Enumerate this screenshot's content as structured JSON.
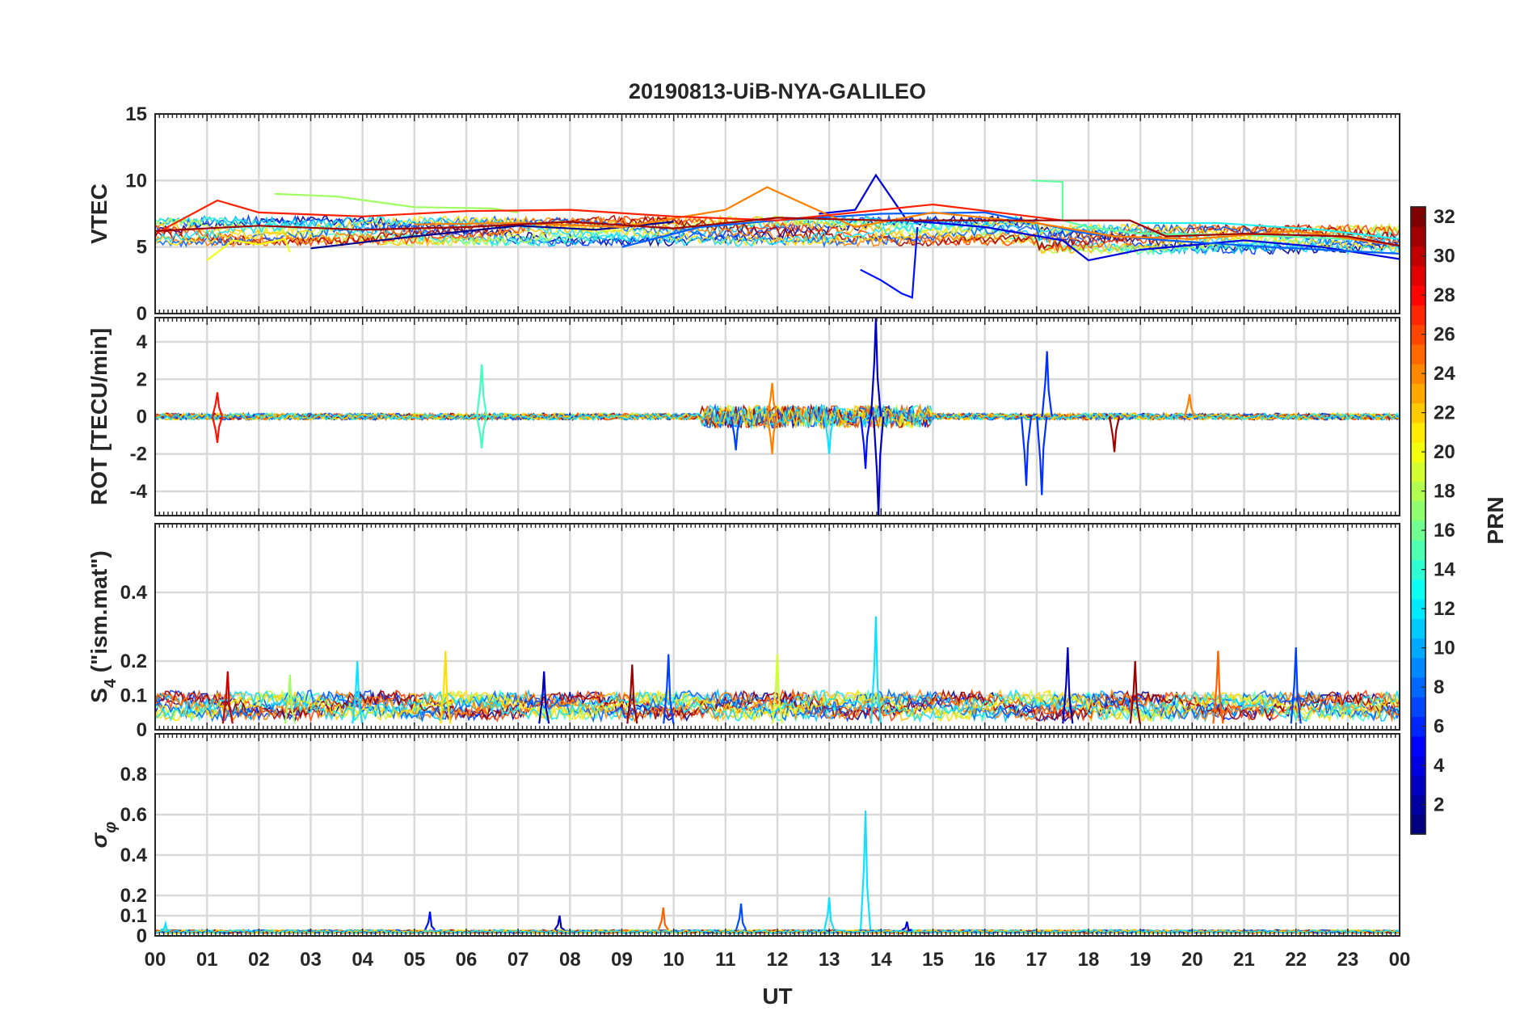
{
  "figure": {
    "title": "20190813-UiB-NYA-GALILEO",
    "xlabel": "UT",
    "x_tick_labels": [
      "00",
      "01",
      "02",
      "03",
      "04",
      "05",
      "06",
      "07",
      "08",
      "09",
      "10",
      "11",
      "12",
      "13",
      "14",
      "15",
      "16",
      "17",
      "18",
      "19",
      "20",
      "21",
      "22",
      "23",
      "00"
    ]
  },
  "colorbar": {
    "label": "PRN",
    "range": [
      1,
      32
    ],
    "tick_labels": [
      "2",
      "4",
      "6",
      "8",
      "10",
      "12",
      "14",
      "16",
      "18",
      "20",
      "22",
      "24",
      "26",
      "28",
      "30",
      "32"
    ],
    "colormap": "jet"
  },
  "chart_data": [
    {
      "type": "line",
      "panel": "vtec",
      "ylabel": "VTEC",
      "xlim": [
        0,
        24
      ],
      "ylim": [
        0,
        15
      ],
      "ytick_labels": [
        "0",
        "5",
        "10",
        "15"
      ],
      "grid": true,
      "series": [
        {
          "prn": 1,
          "color": "#00008f",
          "x": [
            3.0,
            5.0,
            7.0,
            8.5,
            10.0
          ],
          "y": [
            4.9,
            5.8,
            6.6,
            6.3,
            6.9
          ]
        },
        {
          "prn": 3,
          "color": "#0010ff",
          "x": [
            13.6,
            14.0,
            14.4,
            14.6,
            14.7
          ],
          "y": [
            3.3,
            2.5,
            1.5,
            1.2,
            6.5
          ]
        },
        {
          "prn": 4,
          "color": "#0000df",
          "x": [
            12.8,
            13.5,
            13.9,
            14.5,
            16.0,
            17.5,
            18.0,
            19.0,
            21.0,
            22.5,
            24.0
          ],
          "y": [
            7.5,
            7.8,
            10.4,
            7.0,
            6.5,
            5.5,
            4.0,
            4.8,
            5.5,
            5.0,
            4.1
          ]
        },
        {
          "prn": 8,
          "color": "#0060ff",
          "x": [
            9.0,
            10.5,
            12.0,
            14.0,
            16.0,
            18.0,
            19.5,
            21.5,
            24.0
          ],
          "y": [
            5.0,
            6.5,
            7.0,
            7.5,
            7.6,
            6.0,
            5.5,
            5.0,
            4.5
          ]
        },
        {
          "prn": 13,
          "color": "#20f0f0",
          "x": [
            19.0,
            20.5,
            22.5,
            24.0
          ],
          "y": [
            6.8,
            6.8,
            6.3,
            5.6
          ]
        },
        {
          "prn": 16,
          "color": "#60ffa0",
          "x": [
            16.9,
            17.5,
            17.5,
            18.0,
            19.0,
            21.0,
            23.0
          ],
          "y": [
            10.0,
            9.9,
            7.0,
            6.5,
            6.0,
            5.9,
            5.6
          ]
        },
        {
          "prn": 18,
          "color": "#a0ff60",
          "x": [
            2.3,
            3.5,
            5.0,
            6.5,
            7.0
          ],
          "y": [
            9.0,
            8.8,
            8.0,
            7.9,
            7.6
          ]
        },
        {
          "prn": 20,
          "color": "#efff10",
          "x": [
            1.0,
            1.5,
            2.0,
            2.5,
            2.6
          ],
          "y": [
            4.0,
            5.5,
            5.2,
            5.6,
            4.6
          ]
        },
        {
          "prn": 23,
          "color": "#ff8000",
          "x": [
            5.0,
            7.0,
            9.0,
            11.0,
            11.8,
            13.5,
            15.0,
            17.0,
            18.5,
            20.0,
            22.0,
            24.0
          ],
          "y": [
            6.7,
            6.8,
            6.5,
            7.8,
            9.5,
            6.5,
            7.6,
            6.8,
            5.8,
            5.6,
            6.2,
            5.1
          ]
        },
        {
          "prn": 27,
          "color": "#ff2000",
          "x": [
            0.0,
            1.2,
            2.0,
            4.0,
            6.0,
            8.0,
            10.0,
            12.0,
            14.0,
            15.0,
            17.5
          ],
          "y": [
            6.0,
            8.5,
            7.6,
            7.3,
            7.7,
            7.8,
            7.3,
            7.0,
            7.8,
            8.2,
            7.0
          ]
        },
        {
          "prn": 31,
          "color": "#9f0000",
          "x": [
            0.0,
            2.0,
            4.0,
            6.0,
            8.0,
            10.0,
            12.0,
            14.0,
            18.8,
            19.5,
            21.0,
            23.0,
            24.0
          ],
          "y": [
            6.2,
            6.6,
            6.3,
            6.5,
            6.9,
            6.4,
            7.2,
            7.0,
            7.0,
            5.8,
            6.0,
            5.8,
            5.1
          ]
        }
      ]
    },
    {
      "type": "line",
      "panel": "rot",
      "ylabel": "ROT [TECU/min]",
      "xlim": [
        0,
        24
      ],
      "ylim": [
        -5.3,
        5.3
      ],
      "ytick_labels": [
        "-4",
        "-2",
        "0",
        "2",
        "4"
      ],
      "grid": true,
      "spikes": [
        {
          "prn": 2,
          "color": "#0000bf",
          "x": 13.9,
          "y": 5.3
        },
        {
          "prn": 2,
          "color": "#0000bf",
          "x": 13.95,
          "y": -5.3
        },
        {
          "prn": 3,
          "color": "#0010ff",
          "x": 13.7,
          "y": -2.8
        },
        {
          "prn": 5,
          "color": "#0030ff",
          "x": 16.8,
          "y": -3.7
        },
        {
          "prn": 5,
          "color": "#0030ff",
          "x": 17.1,
          "y": -4.2
        },
        {
          "prn": 5,
          "color": "#0030ff",
          "x": 17.2,
          "y": 3.5
        },
        {
          "prn": 6,
          "color": "#0040ff",
          "x": 11.2,
          "y": -1.8
        },
        {
          "prn": 12,
          "color": "#10e0ff",
          "x": 13.0,
          "y": -2.0
        },
        {
          "prn": 14,
          "color": "#40ffc0",
          "x": 6.3,
          "y": 2.8
        },
        {
          "prn": 14,
          "color": "#40ffc0",
          "x": 6.3,
          "y": -1.7
        },
        {
          "prn": 23,
          "color": "#ff8000",
          "x": 11.9,
          "y": 1.8
        },
        {
          "prn": 23,
          "color": "#ff8000",
          "x": 11.9,
          "y": -2.0
        },
        {
          "prn": 23,
          "color": "#ff8000",
          "x": 19.95,
          "y": 1.2
        },
        {
          "prn": 31,
          "color": "#9f0000",
          "x": 18.5,
          "y": -1.9
        },
        {
          "prn": 28,
          "color": "#ff1000",
          "x": 1.2,
          "y": 1.3
        },
        {
          "prn": 28,
          "color": "#ff1000",
          "x": 1.2,
          "y": -1.4
        }
      ]
    },
    {
      "type": "line",
      "panel": "s4",
      "ylabel": "S4 (\"ism.mat\")",
      "ylabel_parts": {
        "main": "S",
        "sub": "4",
        "rest": " (\"ism.mat\")"
      },
      "xlim": [
        0,
        24
      ],
      "ylim": [
        0,
        0.6
      ],
      "ytick_labels": [
        "0",
        "0.1",
        "0.2",
        "0.4"
      ],
      "ytick_values": [
        0,
        0.1,
        0.2,
        0.4
      ],
      "grid": true,
      "peaks": [
        {
          "prn": 30,
          "color": "#cf0000",
          "x": 1.4,
          "y": 0.17
        },
        {
          "prn": 18,
          "color": "#a0ff60",
          "x": 2.6,
          "y": 0.16
        },
        {
          "prn": 12,
          "color": "#10e0ff",
          "x": 3.9,
          "y": 0.2
        },
        {
          "prn": 21,
          "color": "#ffdf00",
          "x": 5.6,
          "y": 0.23
        },
        {
          "prn": 2,
          "color": "#0000bf",
          "x": 7.5,
          "y": 0.17
        },
        {
          "prn": 31,
          "color": "#9f0000",
          "x": 9.2,
          "y": 0.19
        },
        {
          "prn": 6,
          "color": "#0040ff",
          "x": 9.9,
          "y": 0.22
        },
        {
          "prn": 19,
          "color": "#d0ff30",
          "x": 12.0,
          "y": 0.22
        },
        {
          "prn": 12,
          "color": "#10e0ff",
          "x": 13.9,
          "y": 0.33
        },
        {
          "prn": 2,
          "color": "#0000bf",
          "x": 17.6,
          "y": 0.24
        },
        {
          "prn": 31,
          "color": "#9f0000",
          "x": 18.9,
          "y": 0.2
        },
        {
          "prn": 24,
          "color": "#ff6000",
          "x": 20.5,
          "y": 0.23
        },
        {
          "prn": 6,
          "color": "#0040ff",
          "x": 22.0,
          "y": 0.24
        }
      ]
    },
    {
      "type": "line",
      "panel": "sigma_phi",
      "ylabel": "σφ",
      "ylabel_parts": {
        "main": "σ",
        "sub": "φ"
      },
      "xlim": [
        0,
        24
      ],
      "ylim": [
        0,
        1
      ],
      "ytick_labels": [
        "0",
        "0.1",
        "0.2",
        "0.4",
        "0.6",
        "0.8"
      ],
      "ytick_values": [
        0,
        0.1,
        0.2,
        0.4,
        0.6,
        0.8
      ],
      "grid": true,
      "peaks": [
        {
          "prn": 12,
          "color": "#10e0ff",
          "x": 13.7,
          "y": 0.62
        },
        {
          "prn": 12,
          "color": "#10e0ff",
          "x": 13.0,
          "y": 0.19
        },
        {
          "prn": 7,
          "color": "#0050ff",
          "x": 11.3,
          "y": 0.16
        },
        {
          "prn": 24,
          "color": "#ff6000",
          "x": 9.8,
          "y": 0.14
        },
        {
          "prn": 3,
          "color": "#0010ff",
          "x": 5.3,
          "y": 0.12
        },
        {
          "prn": 2,
          "color": "#0000bf",
          "x": 7.8,
          "y": 0.1
        },
        {
          "prn": 4,
          "color": "#0000df",
          "x": 14.5,
          "y": 0.07
        },
        {
          "prn": 12,
          "color": "#10e0ff",
          "x": 0.2,
          "y": 0.06
        }
      ]
    }
  ]
}
